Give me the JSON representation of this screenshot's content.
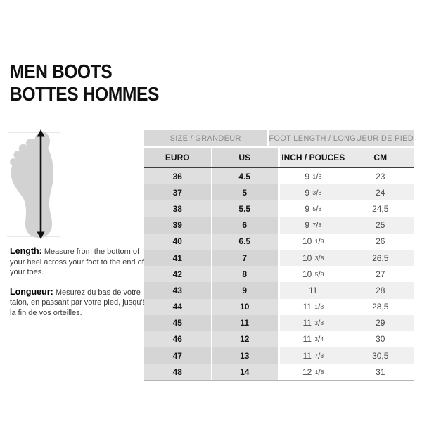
{
  "title": {
    "line1": "MEN BOOTS",
    "line2": "BOTTES HOMMES"
  },
  "foot_figure": {
    "icon": "foot-measure-diagram",
    "description_elements": [
      "foot-sole-silhouette",
      "vertical-double-arrow",
      "top-limit-line",
      "bottom-limit-line"
    ]
  },
  "instructions": {
    "length_label": "Length:",
    "length_text": "Measure from the bottom of your heel across your foot to the end of your toes.",
    "longueur_label": "Longueur:",
    "longueur_text": "Mesurez du bas de votre talon, en passant par votre pied, jusqu'à la fin de vos orteilles."
  },
  "table": {
    "group_headers": [
      "SIZE / GRANDEUR",
      "FOOT LENGTH / LONGUEUR DE PIED"
    ],
    "column_headers": [
      "EURO",
      "US",
      "INCH / POUCES",
      "CM"
    ],
    "rows": [
      {
        "euro": "36",
        "us": "4.5",
        "inch_whole": "9",
        "inch_num": "1",
        "inch_den": "8",
        "cm": "23"
      },
      {
        "euro": "37",
        "us": "5",
        "inch_whole": "9",
        "inch_num": "3",
        "inch_den": "8",
        "cm": "24"
      },
      {
        "euro": "38",
        "us": "5.5",
        "inch_whole": "9",
        "inch_num": "5",
        "inch_den": "8",
        "cm": "24,5"
      },
      {
        "euro": "39",
        "us": "6",
        "inch_whole": "9",
        "inch_num": "7",
        "inch_den": "8",
        "cm": "25"
      },
      {
        "euro": "40",
        "us": "6.5",
        "inch_whole": "10",
        "inch_num": "1",
        "inch_den": "8",
        "cm": "26"
      },
      {
        "euro": "41",
        "us": "7",
        "inch_whole": "10",
        "inch_num": "3",
        "inch_den": "8",
        "cm": "26,5"
      },
      {
        "euro": "42",
        "us": "8",
        "inch_whole": "10",
        "inch_num": "5",
        "inch_den": "8",
        "cm": "27"
      },
      {
        "euro": "43",
        "us": "9",
        "inch_whole": "11",
        "inch_num": "",
        "inch_den": "",
        "cm": "28"
      },
      {
        "euro": "44",
        "us": "10",
        "inch_whole": "11",
        "inch_num": "1",
        "inch_den": "8",
        "cm": "28,5"
      },
      {
        "euro": "45",
        "us": "11",
        "inch_whole": "11",
        "inch_num": "3",
        "inch_den": "8",
        "cm": "29"
      },
      {
        "euro": "46",
        "us": "12",
        "inch_whole": "11",
        "inch_num": "3",
        "inch_den": "4",
        "cm": "30"
      },
      {
        "euro": "47",
        "us": "13",
        "inch_whole": "11",
        "inch_num": "7",
        "inch_den": "8",
        "cm": "30,5"
      },
      {
        "euro": "48",
        "us": "14",
        "inch_whole": "12",
        "inch_num": "1",
        "inch_den": "8",
        "cm": "31"
      }
    ]
  },
  "colors": {
    "text": "#1a1a1a",
    "header_text": "#8c8c8c",
    "header_group_left_bg": "#d8d8d8",
    "header_group_right_bg": "#dcdcdc",
    "header_col_left_bg": "#d8d8d8",
    "header_col_right_bg": "#e9e9e9",
    "row_left_even": "#dfdfdf",
    "row_left_odd": "#d5d5d5",
    "row_right_even": "#ffffff",
    "row_right_odd": "#f0f0f0",
    "dark_rule": "#3d3d3d",
    "bottom_rule": "#b4b4b4",
    "foot_fill": "#d2d2d2",
    "arrow_color": "#111111",
    "limit_line_color": "#c0c0c0"
  }
}
